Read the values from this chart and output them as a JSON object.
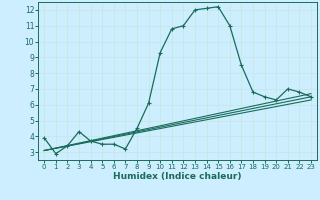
{
  "x": [
    0,
    1,
    2,
    3,
    4,
    5,
    6,
    7,
    8,
    9,
    10,
    11,
    12,
    13,
    14,
    15,
    16,
    17,
    18,
    19,
    20,
    21,
    22,
    23
  ],
  "y_main": [
    3.9,
    2.9,
    3.4,
    4.3,
    3.7,
    3.5,
    3.5,
    3.2,
    4.5,
    6.1,
    9.3,
    10.8,
    11.0,
    12.0,
    12.1,
    12.2,
    11.0,
    8.5,
    6.8,
    6.5,
    6.3,
    7.0,
    6.8,
    6.5
  ],
  "line_color": "#1a6b5a",
  "bg_color": "#cceeff",
  "grid_color": "#c8e8e8",
  "xlabel": "Humidex (Indice chaleur)",
  "xlim": [
    -0.5,
    23.5
  ],
  "ylim": [
    2.5,
    12.5
  ],
  "yticks": [
    3,
    4,
    5,
    6,
    7,
    8,
    9,
    10,
    11,
    12
  ],
  "xticks": [
    0,
    1,
    2,
    3,
    4,
    5,
    6,
    7,
    8,
    9,
    10,
    11,
    12,
    13,
    14,
    15,
    16,
    17,
    18,
    19,
    20,
    21,
    22,
    23
  ],
  "trend_y_start": 3.1,
  "trend_y_end1": 6.3,
  "trend_y_end2": 6.5,
  "trend_y_end3": 6.7
}
